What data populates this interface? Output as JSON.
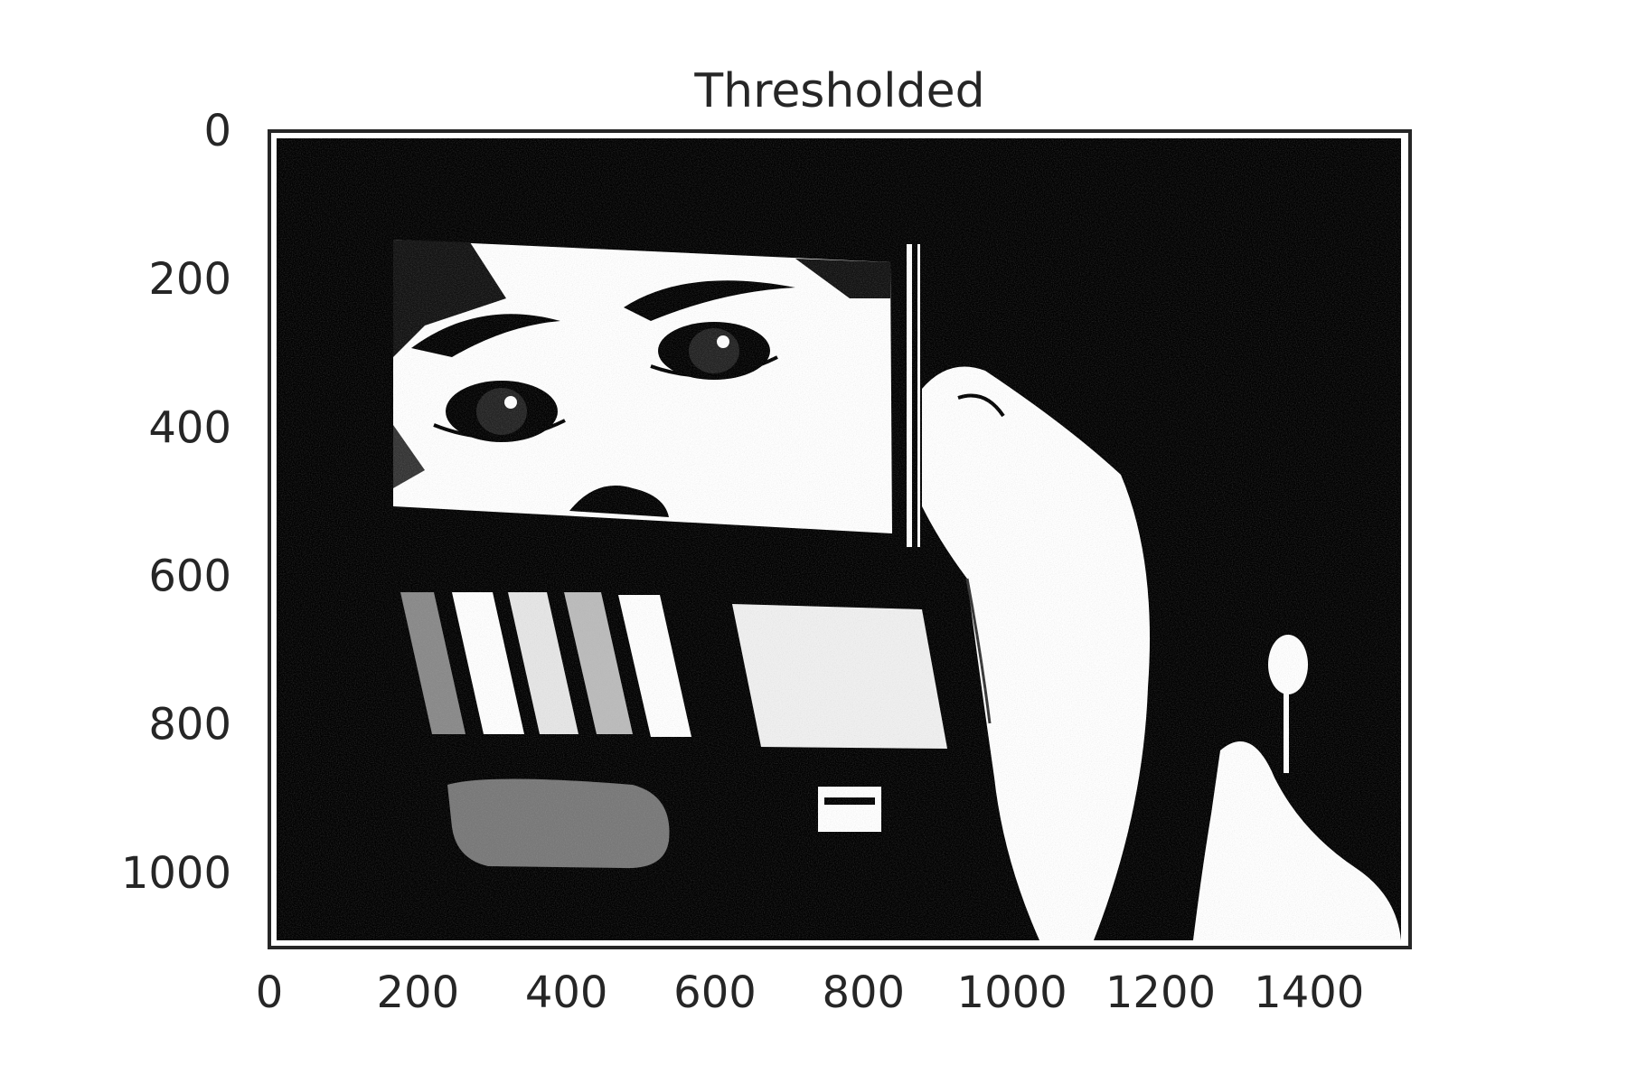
{
  "figure": {
    "title": "Thresholded",
    "image_width": 1536,
    "image_height": 1100,
    "colors": {
      "foreground": "#000000",
      "background": "#ffffff",
      "frame": "#262626",
      "text": "#262626"
    },
    "x_ticks": [
      0,
      200,
      400,
      600,
      800,
      1000,
      1200,
      1400
    ],
    "y_ticks": [
      0,
      200,
      400,
      600,
      800,
      1000
    ],
    "grid": false
  }
}
